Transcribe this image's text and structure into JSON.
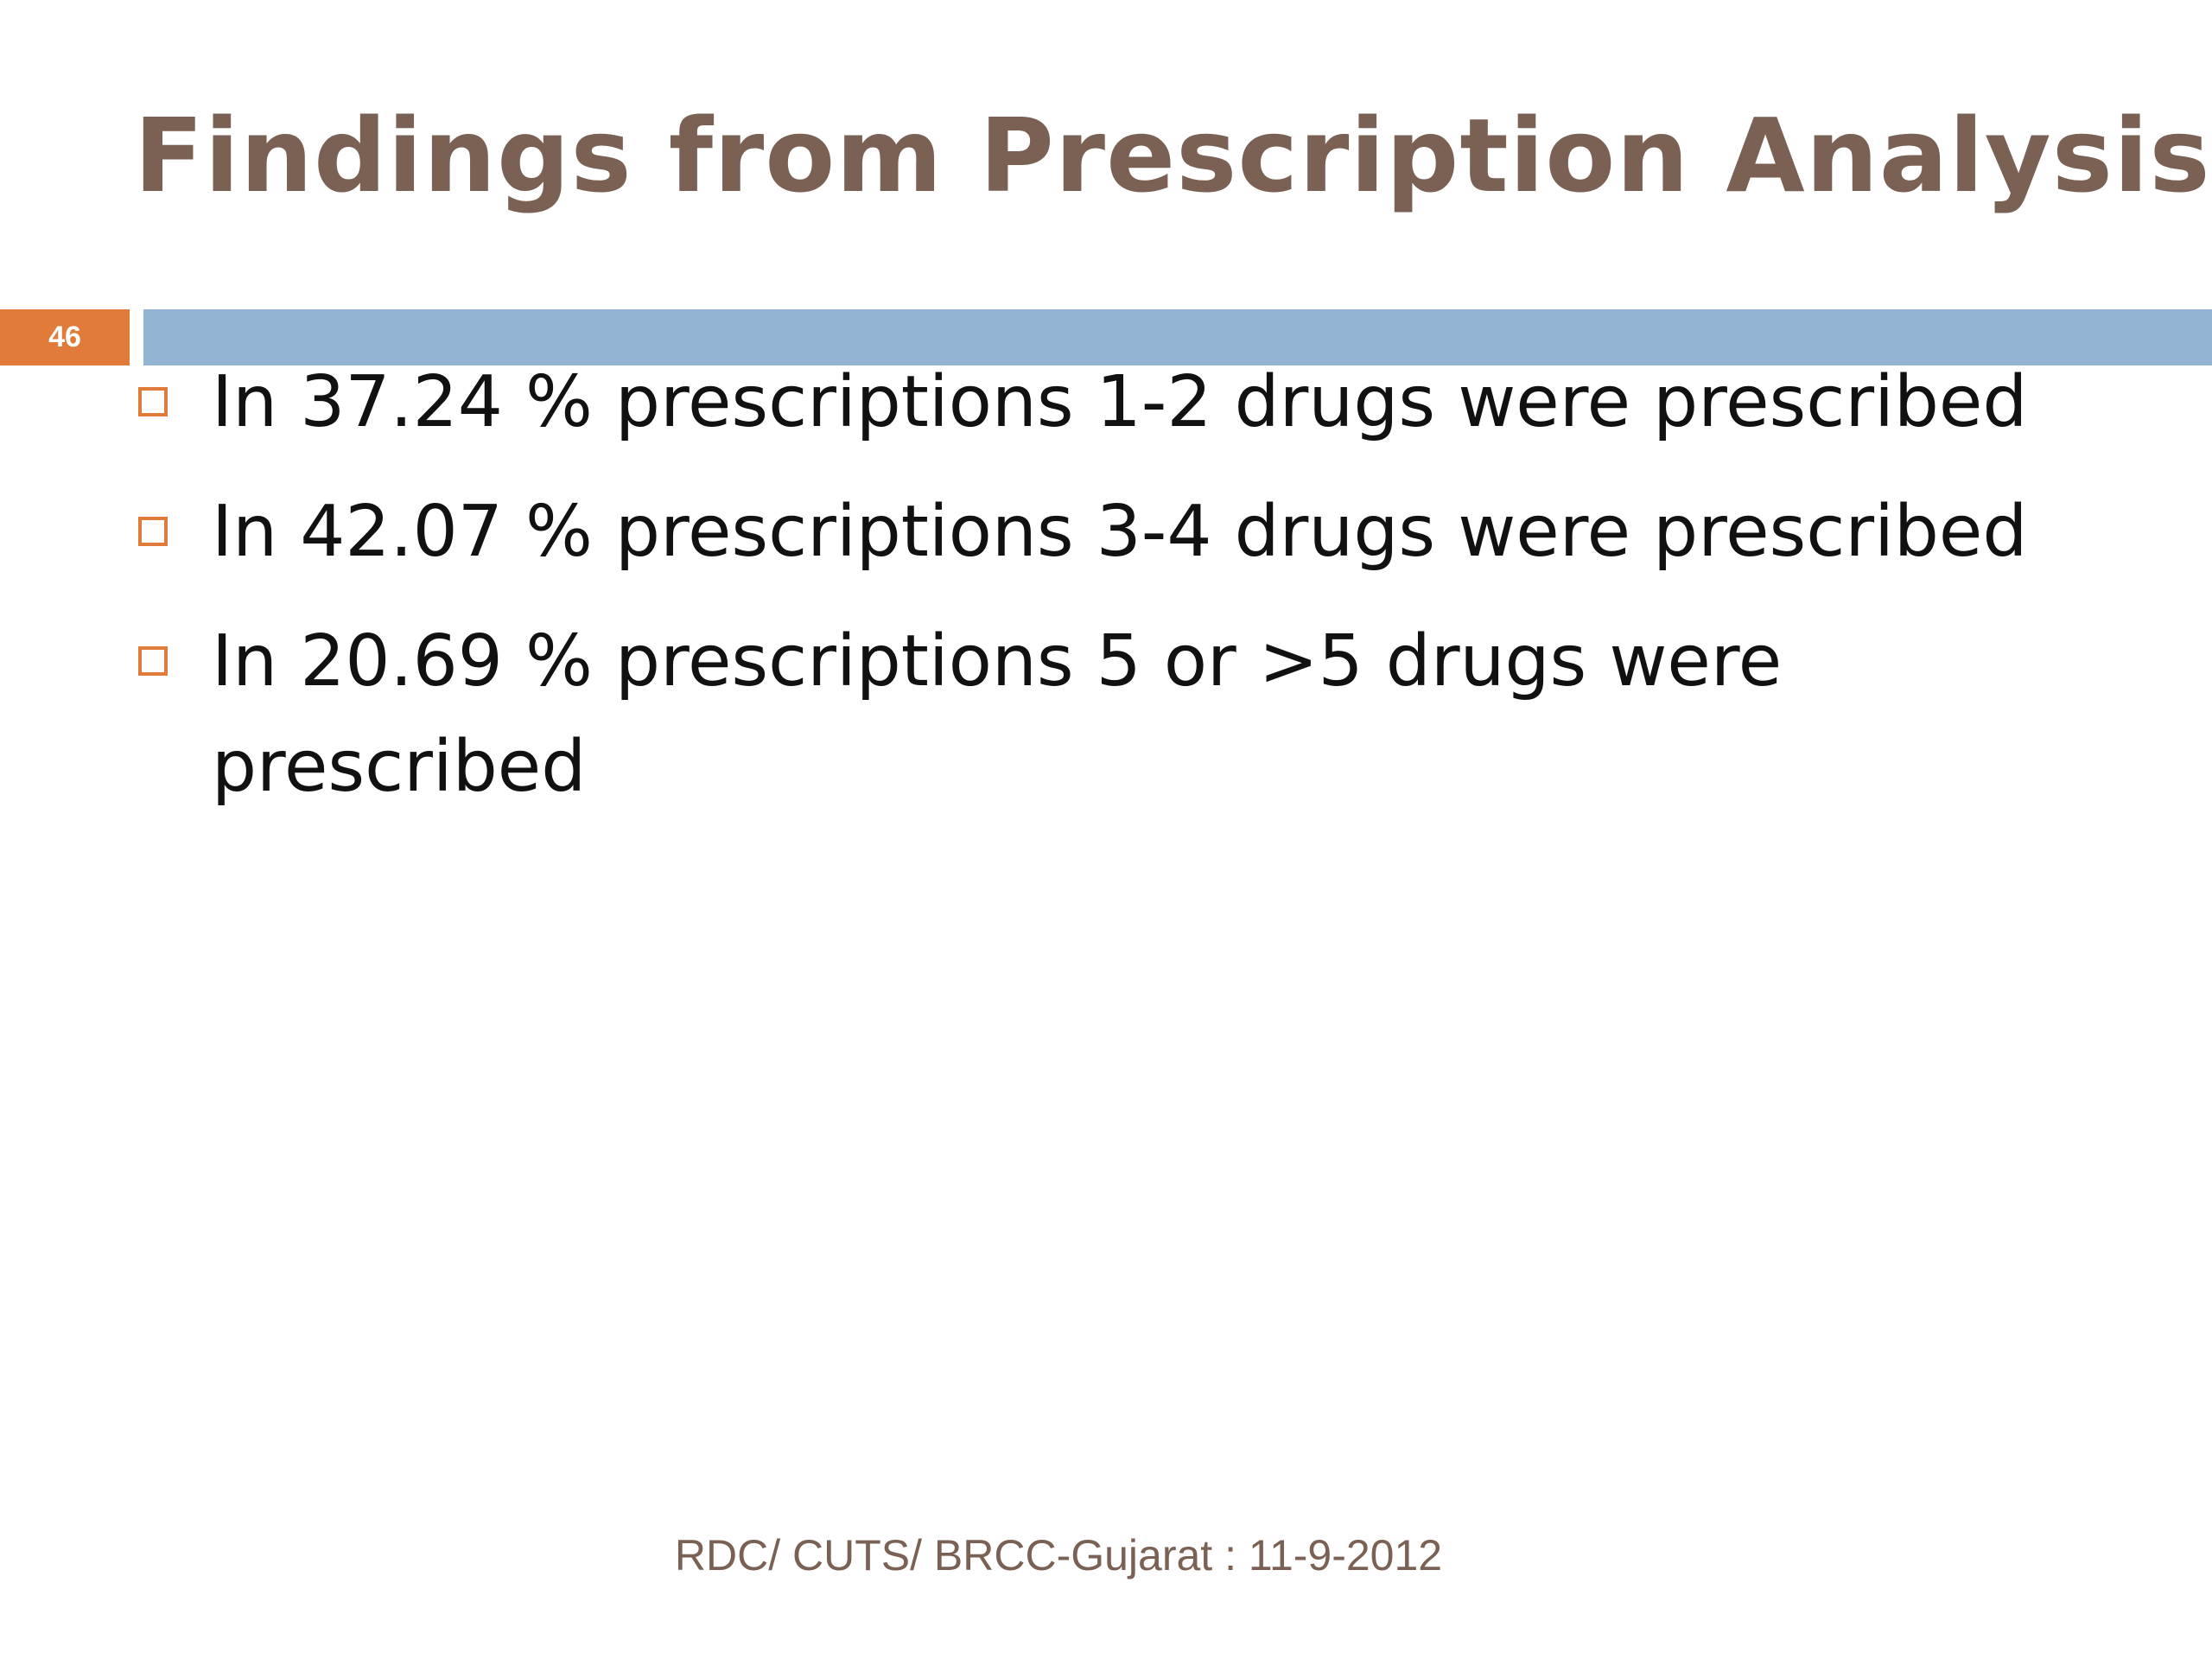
{
  "slide": {
    "title": "Findings from Prescription Analysis",
    "number": "46",
    "bullets": [
      "In 37.24 % prescriptions 1-2 drugs were prescribed",
      "In 42.07 % prescriptions 3-4 drugs were prescribed",
      "In 20.69 % prescriptions 5 or >5 drugs were prescribed"
    ],
    "footer": "RDC/ CUTS/ BRCC-Gujarat : 11-9-2012"
  },
  "colors": {
    "title": "#7a6154",
    "accent": "#e07b39",
    "bar": "#94b4d4",
    "text": "#111111"
  },
  "icons": {
    "bullet": "hollow-square-icon"
  }
}
